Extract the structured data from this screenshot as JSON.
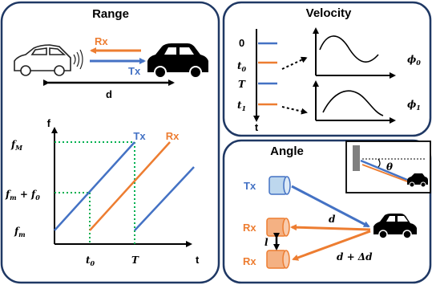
{
  "range": {
    "title": "Range",
    "rx_label": "Rx",
    "tx_label": "Tx",
    "distance_label": "d",
    "chart": {
      "y_axis_label": "f",
      "x_axis_label": "t",
      "tx_series_label": "Tx",
      "rx_series_label": "Rx",
      "y_tick_fM": "f",
      "y_tick_fM_sub": "M",
      "y_tick_fm_f0_a": "f",
      "y_tick_fm_f0_a_sub": "m",
      "y_tick_fm_f0_plus": " + f",
      "y_tick_fm_f0_b_sub": "0",
      "y_tick_fm": "f",
      "y_tick_fm_sub": "m",
      "x_tick_t0": "t",
      "x_tick_t0_sub": "0",
      "x_tick_T": "T"
    }
  },
  "velocity": {
    "title": "Velocity",
    "time_label_0": "0",
    "time_label_t0": "t",
    "time_label_t0_sub": "0",
    "time_label_T": "T",
    "time_label_t1": "t",
    "time_label_t1_sub": "1",
    "time_axis_label": "t",
    "phase0": "ϕ",
    "phase0_sub": "0",
    "phase1": "ϕ",
    "phase1_sub": "1"
  },
  "angle": {
    "title": "Angle",
    "tx_label": "Tx",
    "rx1_label": "Rx",
    "rx2_label": "Rx",
    "d_label": "d",
    "d_delta_label": "d + Δd",
    "l_label": "l",
    "theta_label": "θ"
  },
  "colors": {
    "tx": "#4472c4",
    "rx": "#ed7d31",
    "frame": "#1f3864",
    "green": "#00b050"
  }
}
